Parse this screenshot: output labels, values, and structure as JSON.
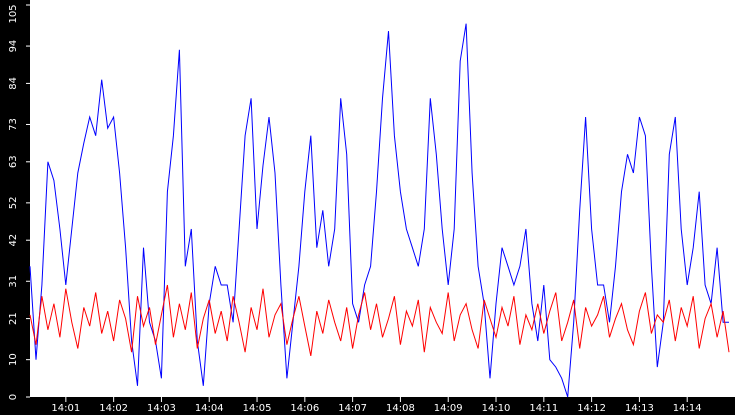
{
  "chart_data": {
    "type": "line",
    "x": [
      840.25,
      840.375,
      840.5,
      840.625,
      840.75,
      840.875,
      841,
      841.125,
      841.25,
      841.375,
      841.5,
      841.625,
      841.75,
      841.875,
      842,
      842.125,
      842.25,
      842.375,
      842.5,
      842.625,
      842.75,
      842.875,
      843,
      843.125,
      843.25,
      843.375,
      843.5,
      843.625,
      843.75,
      843.875,
      844,
      844.125,
      844.25,
      844.375,
      844.5,
      844.625,
      844.75,
      844.875,
      845,
      845.125,
      845.25,
      845.375,
      845.5,
      845.625,
      845.75,
      845.875,
      846,
      846.125,
      846.25,
      846.375,
      846.5,
      846.625,
      846.75,
      846.875,
      847,
      847.125,
      847.25,
      847.375,
      847.5,
      847.625,
      847.75,
      847.875,
      848,
      848.125,
      848.25,
      848.375,
      848.5,
      848.625,
      848.75,
      848.875,
      849,
      849.125,
      849.25,
      849.375,
      849.5,
      849.625,
      849.75,
      849.875,
      850,
      850.125,
      850.25,
      850.375,
      850.5,
      850.625,
      850.75,
      850.875,
      851,
      851.125,
      851.25,
      851.375,
      851.5,
      851.625,
      851.75,
      851.875,
      852,
      852.125,
      852.25,
      852.375,
      852.5,
      852.625,
      852.75,
      852.875,
      853,
      853.125,
      853.25,
      853.375,
      853.5,
      853.625,
      853.75,
      853.875,
      854,
      854.125,
      854.25,
      854.375,
      854.5,
      854.625,
      854.75,
      854.875
    ],
    "series": [
      {
        "color": "#0000ff",
        "values": [
          35,
          10,
          30,
          63,
          58,
          45,
          30,
          45,
          60,
          68,
          75,
          70,
          85,
          72,
          75,
          60,
          40,
          15,
          3,
          40,
          20,
          15,
          5,
          55,
          70,
          93,
          35,
          45,
          15,
          3,
          25,
          35,
          30,
          30,
          20,
          45,
          70,
          80,
          45,
          62,
          75,
          60,
          30,
          5,
          20,
          35,
          55,
          70,
          40,
          50,
          35,
          45,
          80,
          65,
          25,
          20,
          30,
          35,
          55,
          80,
          98,
          70,
          55,
          45,
          40,
          35,
          45,
          80,
          65,
          45,
          30,
          45,
          90,
          100,
          60,
          35,
          25,
          5,
          25,
          40,
          35,
          30,
          35,
          45,
          25,
          15,
          30,
          10,
          8,
          5,
          0,
          20,
          50,
          75,
          45,
          30,
          30,
          20,
          35,
          55,
          65,
          60,
          75,
          70,
          35,
          8,
          20,
          65,
          75,
          45,
          30,
          40,
          55,
          30,
          25,
          40,
          20,
          20
        ]
      },
      {
        "color": "#ff0000",
        "values": [
          22,
          14,
          27,
          18,
          25,
          16,
          29,
          20,
          13,
          24,
          19,
          28,
          17,
          23,
          15,
          26,
          21,
          12,
          27,
          19,
          24,
          14,
          22,
          30,
          16,
          25,
          18,
          28,
          13,
          21,
          26,
          17,
          23,
          15,
          27,
          20,
          12,
          24,
          18,
          29,
          16,
          22,
          25,
          14,
          21,
          27,
          19,
          11,
          23,
          17,
          26,
          20,
          15,
          24,
          13,
          22,
          28,
          18,
          25,
          16,
          21,
          27,
          14,
          23,
          19,
          26,
          12,
          24,
          20,
          17,
          28,
          15,
          22,
          25,
          18,
          13,
          26,
          21,
          16,
          24,
          19,
          27,
          14,
          22,
          18,
          25,
          17,
          23,
          28,
          15,
          20,
          26,
          13,
          24,
          19,
          22,
          27,
          16,
          21,
          25,
          18,
          14,
          23,
          28,
          17,
          22,
          20,
          26,
          15,
          24,
          19,
          27,
          13,
          21,
          25,
          16,
          23,
          12
        ]
      }
    ],
    "xlim": [
      840.25,
      855
    ],
    "ylim": [
      0,
      105
    ],
    "xticks": [
      {
        "value": 841,
        "label": "14:01"
      },
      {
        "value": 842,
        "label": "14:02"
      },
      {
        "value": 843,
        "label": "14:03"
      },
      {
        "value": 844,
        "label": "14:04"
      },
      {
        "value": 845,
        "label": "14:05"
      },
      {
        "value": 846,
        "label": "14:06"
      },
      {
        "value": 847,
        "label": "14:07"
      },
      {
        "value": 848,
        "label": "14:08"
      },
      {
        "value": 849,
        "label": "14:09"
      },
      {
        "value": 850,
        "label": "14:10"
      },
      {
        "value": 851,
        "label": "14:11"
      },
      {
        "value": 852,
        "label": "14:12"
      },
      {
        "value": 853,
        "label": "14:13"
      },
      {
        "value": 854,
        "label": "14:14"
      }
    ],
    "yticks": [
      0,
      10,
      21,
      31,
      42,
      52,
      63,
      73,
      84,
      94,
      105
    ]
  }
}
